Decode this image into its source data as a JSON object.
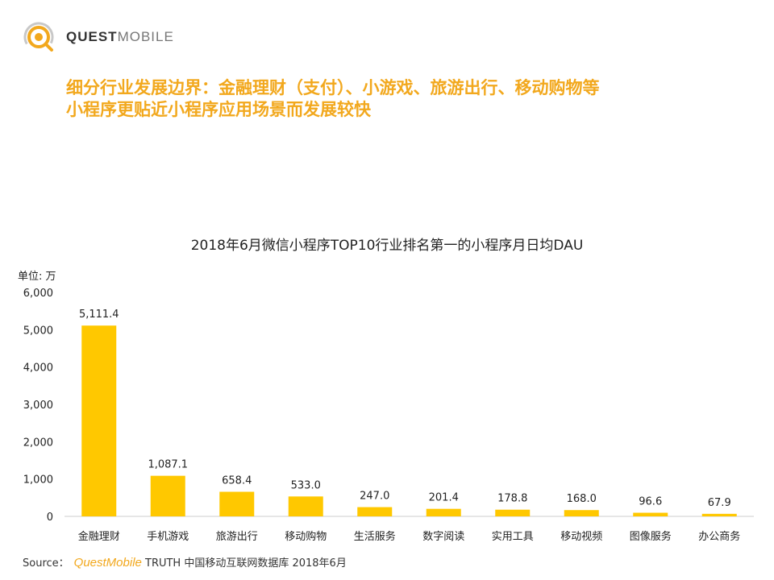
{
  "logo": {
    "text_bold": "QUEST",
    "text_light": "MOBILE"
  },
  "headline": {
    "line1": "细分行业发展边界：金融理财（支付）、小游戏、旅游出行、移动购物等",
    "line2": "小程序更贴近小程序应用场景而发展较快"
  },
  "unit_label": "单位: 万",
  "source": {
    "prefix": "Source：",
    "brand": "QuestMobile",
    "rest": " TRUTH 中国移动互联网数据库 2018年6月"
  },
  "colors": {
    "accent": "#f2a81d",
    "bar": "#ffc800",
    "axis": "#cccccc"
  },
  "chart_data": {
    "type": "bar",
    "title": "2018年6月微信小程序TOP10行业排名第一的小程序月日均DAU",
    "ylabel": "单位: 万",
    "ylim": [
      0,
      6000
    ],
    "yticks": [
      "0",
      "1,000",
      "2,000",
      "3,000",
      "4,000",
      "5,000",
      "6,000"
    ],
    "categories": [
      "金融理财",
      "手机游戏",
      "旅游出行",
      "移动购物",
      "生活服务",
      "数字阅读",
      "实用工具",
      "移动视频",
      "图像服务",
      "办公商务"
    ],
    "values": [
      5111.4,
      1087.1,
      658.4,
      533.0,
      247.0,
      201.4,
      178.8,
      168.0,
      96.6,
      67.9
    ],
    "value_labels": [
      "5,111.4",
      "1,087.1",
      "658.4",
      "533.0",
      "247.0",
      "201.4",
      "178.8",
      "168.0",
      "96.6",
      "67.9"
    ],
    "grid": false,
    "legend": "none"
  }
}
